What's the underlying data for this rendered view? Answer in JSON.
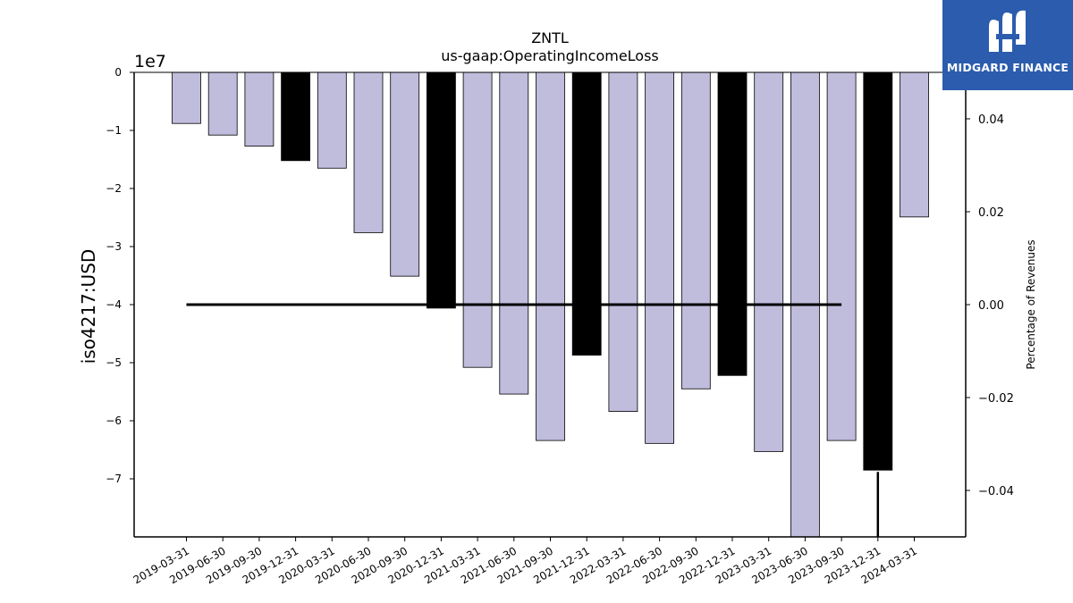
{
  "chart_data": {
    "type": "bar",
    "title": "ZNTL",
    "subtitle": "us-gaap:OperatingIncomeLoss",
    "ylabel": "iso4217:USD",
    "y_offset_label": "1e7",
    "y2label": "Percentage of Revenues",
    "ylim": [
      -80000000,
      0
    ],
    "y2lim": [
      -0.05,
      0.05
    ],
    "grid": false,
    "categories": [
      "2019-03-31",
      "2019-06-30",
      "2019-09-30",
      "2019-12-31",
      "2020-03-31",
      "2020-06-30",
      "2020-09-30",
      "2020-12-31",
      "2021-03-31",
      "2021-06-30",
      "2021-09-30",
      "2021-12-31",
      "2022-03-31",
      "2022-06-30",
      "2022-09-30",
      "2022-12-31",
      "2023-03-31",
      "2023-06-30",
      "2023-09-30",
      "2023-12-31",
      "2024-03-31"
    ],
    "values": [
      -8800000,
      -10800000,
      -12700000,
      -15200000,
      -16500000,
      -27600000,
      -35100000,
      -40600000,
      -50800000,
      -55400000,
      -63400000,
      -48700000,
      -58400000,
      -63900000,
      -54500000,
      -52200000,
      -65300000,
      -80000000,
      -63400000,
      -68500000,
      -24900000
    ],
    "annual_flags": [
      false,
      false,
      false,
      true,
      false,
      false,
      false,
      true,
      false,
      false,
      false,
      true,
      false,
      false,
      false,
      true,
      false,
      false,
      false,
      true,
      false
    ],
    "y_ticks": [
      0,
      -10000000,
      -20000000,
      -30000000,
      -40000000,
      -50000000,
      -60000000,
      -70000000
    ],
    "y_tick_labels": [
      "0",
      "−1",
      "−2",
      "−3",
      "−4",
      "−5",
      "−6",
      "−7"
    ],
    "y2_ticks": [
      0.04,
      0.02,
      0.0,
      -0.02,
      -0.04
    ],
    "y2_tick_labels": [
      "0.04",
      "0.02",
      "0.00",
      "−0.02",
      "−0.04"
    ],
    "series_line": {
      "name": "",
      "x_range": [
        "2019-03-31",
        "2023-09-30"
      ],
      "value": 0.0
    },
    "drop_line": {
      "category": "2023-12-31",
      "from": -0.036,
      "to": -0.05
    },
    "colors": {
      "quarter_bar": "#bfbcdc",
      "annual_bar": "#000000",
      "edge": "#000000"
    }
  },
  "logo": {
    "text": "MIDGARD FINANCE",
    "icon": "midgard-logo-icon",
    "background": "#2b5cad"
  }
}
